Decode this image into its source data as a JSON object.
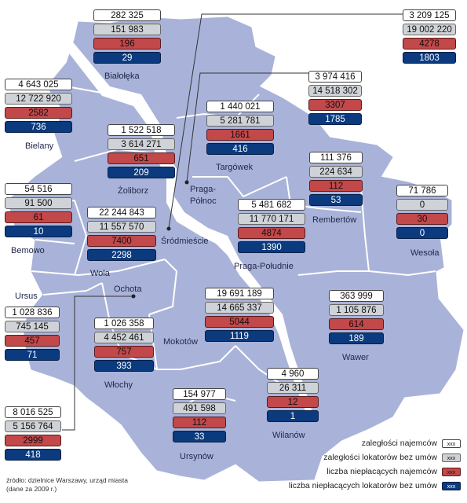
{
  "districts": [
    {
      "id": "bialoleka",
      "name": "Białołęka",
      "values": [
        "282 325",
        "151 983",
        "196",
        "29"
      ]
    },
    {
      "id": "targowek",
      "name": "Targówek",
      "values": [
        "1 440 021",
        "5 281 781",
        "1661",
        "416"
      ]
    },
    {
      "id": "bielany",
      "name": "Bielany",
      "values": [
        "4 643 025",
        "12 722 920",
        "2582",
        "736"
      ]
    },
    {
      "id": "zoliborz",
      "name": "Żoliborz",
      "values": [
        "1 522 518",
        "3 614 271",
        "651",
        "209"
      ]
    },
    {
      "id": "bemowo",
      "name": "Bemowo",
      "values": [
        "54 516",
        "91 500",
        "61",
        "10"
      ]
    },
    {
      "id": "wola",
      "name": "Wola",
      "values": [
        "22 244 843",
        "11 557 570",
        "7400",
        "2298"
      ]
    },
    {
      "id": "praga_poludnie",
      "name": "Praga-Południe",
      "values": [
        "5 481 682",
        "11 770 171",
        "4874",
        "1390"
      ]
    },
    {
      "id": "rembertow",
      "name": "Rembertów",
      "values": [
        "111 376",
        "224 634",
        "112",
        "53"
      ]
    },
    {
      "id": "wesola",
      "name": "Wesoła",
      "values": [
        "71 786",
        "0",
        "30",
        "0"
      ]
    },
    {
      "id": "ursus",
      "name": "Ursus",
      "values": [
        "1 028 836",
        "745 145",
        "457",
        "71"
      ]
    },
    {
      "id": "wlochy",
      "name": "Włochy",
      "values": [
        "1 026 358",
        "4 452 461",
        "757",
        "393"
      ]
    },
    {
      "id": "mokotow",
      "name": "Mokotów",
      "values": [
        "19 691 189",
        "14 665 337",
        "5044",
        "1119"
      ]
    },
    {
      "id": "wawer",
      "name": "Wawer",
      "values": [
        "363 999",
        "1 105 876",
        "614",
        "189"
      ]
    },
    {
      "id": "wilanow",
      "name": "Wilanów",
      "values": [
        "4 960",
        "26 311",
        "12",
        "1"
      ]
    },
    {
      "id": "ursynow",
      "name": "Ursynów",
      "values": [
        "154 977",
        "491 598",
        "112",
        "33"
      ]
    },
    {
      "id": "srodmiescie",
      "name": "Śródmieście",
      "values": [
        "3 209 125",
        "19 002 220",
        "4278",
        "1803"
      ]
    },
    {
      "id": "praga_polnoc",
      "name": "Praga-Północ",
      "values": [
        "3 974 416",
        "14 518 302",
        "3307",
        "1785"
      ]
    },
    {
      "id": "ochota",
      "name": "Ochota",
      "values": [
        "8 016 525",
        "5 156 764",
        "2999",
        "418"
      ]
    }
  ],
  "labels": {
    "praga_polnoc_1": "Praga-",
    "praga_polnoc_2": "Północ"
  },
  "legend": [
    {
      "text": "zaległości najemców",
      "key": "xxx"
    },
    {
      "text": "zaległości lokatorów bez umów",
      "key": "xxx"
    },
    {
      "text": "liczba niepłacących najemców",
      "key": "xxx"
    },
    {
      "text": "liczba niepłacących lokatorów bez umów",
      "key": "xxx"
    }
  ],
  "source": {
    "line1": "źródło: dzielnice Warszawy, urząd miasta",
    "line2": "(dane za 2009 r.)"
  },
  "colors": {
    "map": "#a9b3d9",
    "river": "#ffffff",
    "border": "#ffffff",
    "white": "#ffffff",
    "gray": "#cfd2d6",
    "red": "#c2484a",
    "blue": "#0b3a7e"
  }
}
